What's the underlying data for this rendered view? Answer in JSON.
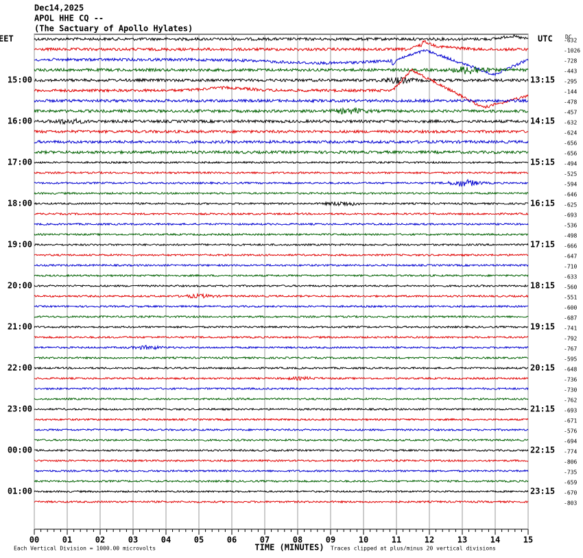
{
  "chart_data": {
    "type": "helicorder",
    "title_lines": [
      "Dec14,2025",
      "APOL HHE CQ --",
      "(The Sactuary of Apollo Hylates)"
    ],
    "left_label": "EET",
    "right_label": "UTC",
    "dc_label": "DC",
    "left_times": [
      "15:00",
      "16:00",
      "17:00",
      "18:00",
      "19:00",
      "20:00",
      "21:00",
      "22:00",
      "23:00",
      "00:00",
      "01:00"
    ],
    "right_times": [
      "13:15",
      "14:15",
      "15:15",
      "16:15",
      "17:15",
      "18:15",
      "19:15",
      "20:15",
      "21:15",
      "22:15",
      "23:15"
    ],
    "trace_colors": [
      "#000000",
      "#e00000",
      "#0000d0",
      "#006000"
    ],
    "dc_values": [
      -632,
      -1026,
      -728,
      -443,
      -295,
      -144,
      -478,
      -457,
      -632,
      -624,
      -656,
      -656,
      -494,
      -525,
      -594,
      -646,
      -625,
      -693,
      -536,
      -498,
      -666,
      -647,
      -710,
      -633,
      -560,
      -551,
      -600,
      -687,
      -741,
      -792,
      -767,
      -595,
      -648,
      -736,
      -730,
      -762,
      -693,
      -671,
      -576,
      -694,
      -774,
      -806,
      -735,
      -659,
      -670,
      -803
    ],
    "xlim": [
      0,
      15
    ],
    "xticks": [
      {
        "value": 0,
        "label": "00"
      },
      {
        "value": 1,
        "label": "01"
      },
      {
        "value": 2,
        "label": "02"
      },
      {
        "value": 3,
        "label": "03"
      },
      {
        "value": 4,
        "label": "04"
      },
      {
        "value": 5,
        "label": "05"
      },
      {
        "value": 6,
        "label": "06"
      },
      {
        "value": 7,
        "label": "07"
      },
      {
        "value": 8,
        "label": "08"
      },
      {
        "value": 9,
        "label": "09"
      },
      {
        "value": 10,
        "label": "10"
      },
      {
        "value": 11,
        "label": "11"
      },
      {
        "value": 12,
        "label": "12"
      },
      {
        "value": 13,
        "label": "13"
      },
      {
        "value": 14,
        "label": "14"
      },
      {
        "value": 15,
        "label": "15"
      }
    ],
    "xlabel": "TIME (MINUTES)",
    "scale_note": "Each Vertical Division = 1000.00 microvolts",
    "clip_note": "Traces clipped at plus/minus 20 vertical divisions",
    "grid": true
  }
}
